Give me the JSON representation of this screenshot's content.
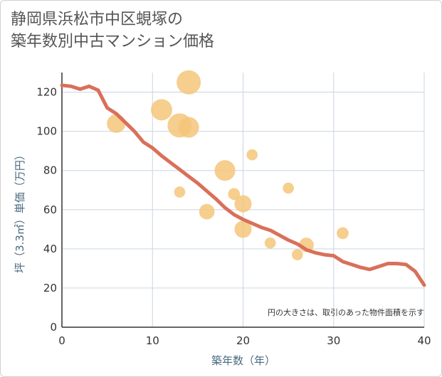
{
  "chart_data": {
    "type": "scatter",
    "title_lines": [
      "静岡県浜松市中区蜆塚の",
      "築年数別中古マンション価格"
    ],
    "xlabel": "築年数（年）",
    "ylabel": "坪（3.3㎡）単価（万円）",
    "xlim": [
      0,
      40
    ],
    "ylim": [
      0,
      130
    ],
    "x_ticks": [
      "0",
      "10",
      "20",
      "30",
      "40"
    ],
    "y_ticks": [
      "0",
      "20",
      "40",
      "60",
      "80",
      "100",
      "120"
    ],
    "x_tick_values": [
      0,
      10,
      20,
      30,
      40
    ],
    "y_tick_values": [
      0,
      20,
      40,
      60,
      80,
      100,
      120
    ],
    "grid": true,
    "note": "円の大きさは、取引のあった物件面積を示す",
    "bubble_color": "#f5c57a",
    "line_color": "#d9705a",
    "series": [
      {
        "name": "transactions",
        "points": [
          {
            "x": 6,
            "y": 104,
            "size": 55
          },
          {
            "x": 11,
            "y": 111,
            "size": 75
          },
          {
            "x": 13,
            "y": 103,
            "size": 100
          },
          {
            "x": 14,
            "y": 102,
            "size": 70
          },
          {
            "x": 14,
            "y": 125,
            "size": 100
          },
          {
            "x": 13,
            "y": 69,
            "size": 15
          },
          {
            "x": 16,
            "y": 59,
            "size": 35
          },
          {
            "x": 18,
            "y": 80,
            "size": 70
          },
          {
            "x": 19,
            "y": 68,
            "size": 18
          },
          {
            "x": 20,
            "y": 63,
            "size": 45
          },
          {
            "x": 20,
            "y": 50,
            "size": 45
          },
          {
            "x": 21,
            "y": 88,
            "size": 15
          },
          {
            "x": 23,
            "y": 43,
            "size": 15
          },
          {
            "x": 25,
            "y": 71,
            "size": 15
          },
          {
            "x": 26,
            "y": 37,
            "size": 15
          },
          {
            "x": 27,
            "y": 42,
            "size": 30
          },
          {
            "x": 31,
            "y": 48,
            "size": 18
          }
        ]
      },
      {
        "name": "trend",
        "points": [
          {
            "x": 0,
            "y": 123.5
          },
          {
            "x": 1,
            "y": 123
          },
          {
            "x": 2,
            "y": 121.5
          },
          {
            "x": 3,
            "y": 123
          },
          {
            "x": 4,
            "y": 121
          },
          {
            "x": 5,
            "y": 112
          },
          {
            "x": 6,
            "y": 109
          },
          {
            "x": 7,
            "y": 104.5
          },
          {
            "x": 8,
            "y": 100
          },
          {
            "x": 9,
            "y": 94.5
          },
          {
            "x": 10,
            "y": 91.5
          },
          {
            "x": 11,
            "y": 87.5
          },
          {
            "x": 12,
            "y": 84
          },
          {
            "x": 13,
            "y": 80.5
          },
          {
            "x": 14,
            "y": 77
          },
          {
            "x": 15,
            "y": 73.5
          },
          {
            "x": 16,
            "y": 69.5
          },
          {
            "x": 17,
            "y": 65.5
          },
          {
            "x": 18,
            "y": 61
          },
          {
            "x": 19,
            "y": 57.5
          },
          {
            "x": 20,
            "y": 55
          },
          {
            "x": 21,
            "y": 53
          },
          {
            "x": 22,
            "y": 51
          },
          {
            "x": 23,
            "y": 49.5
          },
          {
            "x": 24,
            "y": 47
          },
          {
            "x": 25,
            "y": 44.5
          },
          {
            "x": 26,
            "y": 42.5
          },
          {
            "x": 27,
            "y": 39.5
          },
          {
            "x": 28,
            "y": 38
          },
          {
            "x": 29,
            "y": 37
          },
          {
            "x": 30,
            "y": 36.5
          },
          {
            "x": 31,
            "y": 33.5
          },
          {
            "x": 32,
            "y": 32
          },
          {
            "x": 33,
            "y": 30.5
          },
          {
            "x": 34,
            "y": 29.5
          },
          {
            "x": 35,
            "y": 31
          },
          {
            "x": 36,
            "y": 32.5
          },
          {
            "x": 37,
            "y": 32.5
          },
          {
            "x": 38,
            "y": 32
          },
          {
            "x": 39,
            "y": 28.5
          },
          {
            "x": 40,
            "y": 21.5
          }
        ]
      }
    ]
  }
}
